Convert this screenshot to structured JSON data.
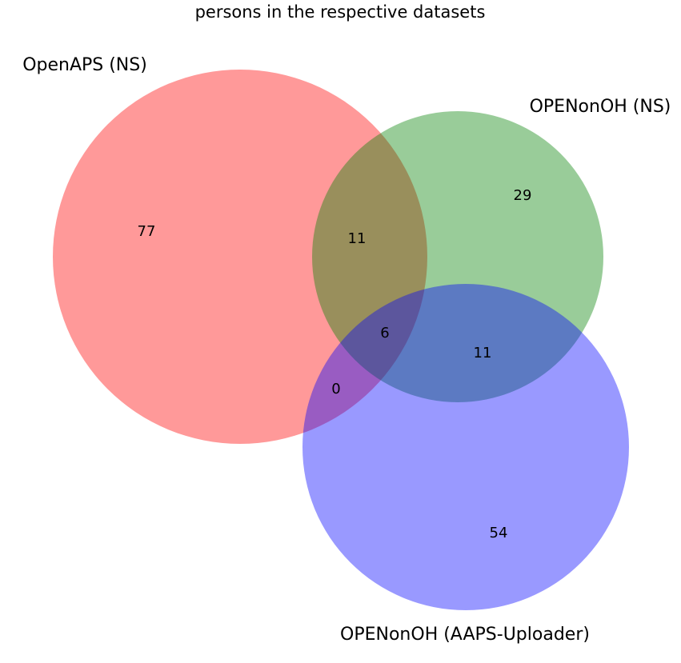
{
  "chart_data": {
    "type": "venn",
    "title": "persons in the respective datasets",
    "sets": [
      {
        "key": "A",
        "name": "OpenAPS (NS)",
        "color": "#ff0000",
        "alpha": 0.4
      },
      {
        "key": "B",
        "name": "OPENonOH (NS)",
        "color": "#008000",
        "alpha": 0.4
      },
      {
        "key": "C",
        "name": "OPENonOH (AAPS-Uploader)",
        "color": "#0000ff",
        "alpha": 0.4
      }
    ],
    "regions": [
      {
        "key": "A_only",
        "sets": [
          "A"
        ],
        "value": 77
      },
      {
        "key": "B_only",
        "sets": [
          "B"
        ],
        "value": 29
      },
      {
        "key": "AB_only",
        "sets": [
          "A",
          "B"
        ],
        "value": 11
      },
      {
        "key": "ABC",
        "sets": [
          "A",
          "B",
          "C"
        ],
        "value": 6
      },
      {
        "key": "BC_only",
        "sets": [
          "B",
          "C"
        ],
        "value": 11
      },
      {
        "key": "AC_only",
        "sets": [
          "A",
          "C"
        ],
        "value": 0
      },
      {
        "key": "C_only",
        "sets": [
          "C"
        ],
        "value": 54
      }
    ]
  }
}
